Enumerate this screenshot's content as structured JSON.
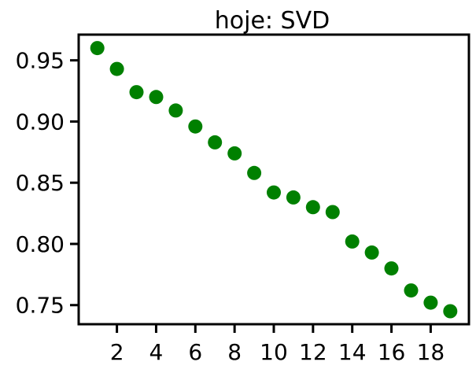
{
  "chart_data": {
    "type": "scatter",
    "title": "hoje: SVD",
    "xlabel": "",
    "ylabel": "",
    "xlim": [
      0.05,
      19.95
    ],
    "ylim": [
      0.7344,
      0.971
    ],
    "xticks": [
      2,
      4,
      6,
      8,
      10,
      12,
      14,
      16,
      18
    ],
    "xtick_labels": [
      "2",
      "4",
      "6",
      "8",
      "10",
      "12",
      "14",
      "16",
      "18"
    ],
    "yticks": [
      0.75,
      0.8,
      0.85,
      0.9,
      0.95
    ],
    "ytick_labels": [
      "0.75",
      "0.80",
      "0.85",
      "0.90",
      "0.95"
    ],
    "grid": false,
    "marker_color": "#008000",
    "x": [
      1,
      2,
      3,
      4,
      5,
      6,
      7,
      8,
      9,
      10,
      11,
      12,
      13,
      14,
      15,
      16,
      17,
      18,
      19
    ],
    "y": [
      0.96,
      0.943,
      0.924,
      0.92,
      0.909,
      0.896,
      0.883,
      0.874,
      0.858,
      0.842,
      0.838,
      0.83,
      0.826,
      0.802,
      0.793,
      0.78,
      0.762,
      0.752,
      0.745
    ]
  }
}
